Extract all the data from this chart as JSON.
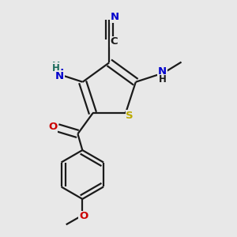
{
  "bg_color": "#e8e8e8",
  "bond_color": "#1a1a1a",
  "bond_lw": 1.6,
  "dbo": 0.018,
  "atom_colors": {
    "N": "#0000cc",
    "O": "#cc0000",
    "S": "#bbaa00",
    "C": "#1a1a1a"
  },
  "fs_main": 9.5,
  "fs_small": 8.5,
  "xlim": [
    0.0,
    1.0
  ],
  "ylim": [
    0.0,
    1.0
  ]
}
